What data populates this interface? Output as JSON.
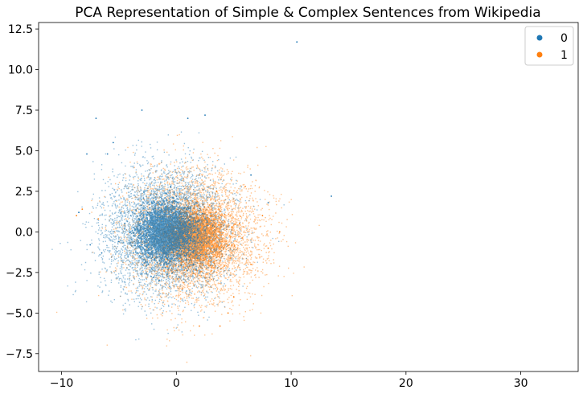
{
  "chart_data": {
    "type": "scatter",
    "title": "PCA Representation of Simple & Complex Sentences from Wikipedia",
    "xlabel": "",
    "ylabel": "",
    "xlim": [
      -12.0,
      35.0
    ],
    "ylim": [
      -8.6,
      12.9
    ],
    "xticks": [
      -10,
      0,
      10,
      20,
      30
    ],
    "xtick_labels": [
      "−10",
      "0",
      "10",
      "20",
      "30"
    ],
    "yticks": [
      -7.5,
      -5.0,
      -2.5,
      0.0,
      2.5,
      5.0,
      7.5,
      10.0,
      12.5
    ],
    "ytick_labels": [
      "−7.5",
      "−5.0",
      "−2.5",
      "0.0",
      "2.5",
      "5.0",
      "7.5",
      "10.0",
      "12.5"
    ],
    "grid": false,
    "legend_position": "top-right",
    "series": [
      {
        "name": "0",
        "color": "#1f77b4",
        "center": [
          -1.0,
          0.0
        ],
        "spread": [
          2.6,
          1.9
        ],
        "points": [
          [
            -1.0,
            0.0
          ],
          [
            -2.5,
            1.2
          ],
          [
            0.5,
            -1.0
          ],
          [
            -3.0,
            -1.5
          ],
          [
            1.0,
            1.5
          ],
          [
            -0.5,
            2.8
          ],
          [
            -4.5,
            0.5
          ],
          [
            -2.0,
            -2.8
          ],
          [
            1.5,
            -2.0
          ],
          [
            -6.0,
            4.8
          ],
          [
            -5.5,
            5.5
          ],
          [
            -7.0,
            7.0
          ],
          [
            -3.0,
            7.5
          ],
          [
            1.0,
            7.0
          ],
          [
            2.5,
            7.2
          ],
          [
            -6.5,
            -1.3
          ],
          [
            -7.5,
            -0.8
          ],
          [
            -5.0,
            -0.6
          ],
          [
            -3.0,
            -2.6
          ],
          [
            -1.5,
            -3.0
          ],
          [
            -8.5,
            1.2
          ],
          [
            -7.8,
            4.8
          ],
          [
            6.5,
            3.5
          ],
          [
            13.5,
            2.2
          ],
          [
            10.5,
            11.7
          ],
          [
            8.0,
            1.8
          ]
        ]
      },
      {
        "name": "1",
        "color": "#ff7f0e",
        "center": [
          1.5,
          -0.3
        ],
        "spread": [
          2.8,
          1.9
        ],
        "points": [
          [
            1.5,
            -0.3
          ],
          [
            3.0,
            1.0
          ],
          [
            4.0,
            -1.5
          ],
          [
            2.5,
            -2.8
          ],
          [
            5.5,
            0.5
          ],
          [
            3.5,
            2.5
          ],
          [
            0.5,
            -3.5
          ],
          [
            6.5,
            -2.0
          ],
          [
            5.0,
            -4.0
          ],
          [
            7.5,
            1.0
          ],
          [
            2.0,
            3.5
          ],
          [
            8.0,
            -1.0
          ],
          [
            4.5,
            -5.0
          ],
          [
            6.0,
            2.8
          ],
          [
            -8.2,
            1.4
          ],
          [
            -8.7,
            1.0
          ],
          [
            -6.8,
            0.8
          ],
          [
            3.8,
            -5.8
          ],
          [
            9.0,
            0.0
          ],
          [
            2.0,
            -5.8
          ]
        ]
      }
    ]
  }
}
